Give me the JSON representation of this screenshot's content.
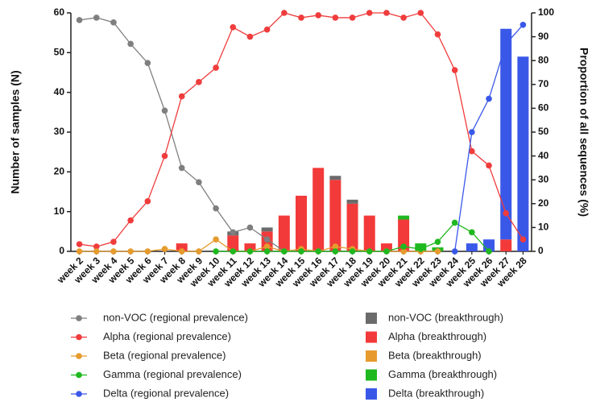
{
  "chart_data": {
    "type": "bar-line",
    "y_label": "Number of samples (N)",
    "y2_label": "Proportion of all sequences (%)",
    "categories": [
      "week 2",
      "week 3",
      "week 4",
      "week 5",
      "week 6",
      "week 7",
      "week 8",
      "week 9",
      "week 10",
      "week 11",
      "week 12",
      "week 13",
      "week 14",
      "week 15",
      "week 16",
      "week 17",
      "week 18",
      "week 19",
      "week 20",
      "week 21",
      "week 22",
      "week 23",
      "week 24",
      "week 25",
      "week 26",
      "week 27",
      "week 28"
    ],
    "ylim": [
      0,
      60
    ],
    "yticks": [
      0,
      10,
      20,
      30,
      40,
      50,
      60
    ],
    "y2lim": [
      0,
      100
    ],
    "y2ticks": [
      0,
      10,
      20,
      30,
      40,
      50,
      60,
      70,
      80,
      90,
      100
    ],
    "series": [
      {
        "name": "non-VOC (regional prevalence)",
        "type": "line",
        "axis": "y2",
        "color": "#7f7f7f",
        "values": [
          97,
          98,
          96,
          87,
          79,
          59,
          35,
          29,
          18,
          8,
          10,
          5,
          0,
          null,
          null,
          null,
          null,
          null,
          null,
          null,
          null,
          null,
          null,
          null,
          null,
          null,
          null
        ]
      },
      {
        "name": "Alpha (regional prevalence)",
        "type": "line",
        "axis": "y2",
        "color": "#f03c3c",
        "values": [
          3,
          2,
          4,
          13,
          21,
          40,
          65,
          71,
          77,
          94,
          90,
          93,
          100,
          98,
          99,
          98,
          98,
          100,
          100,
          98,
          100,
          91,
          76,
          42,
          36,
          16,
          5
        ]
      },
      {
        "name": "Beta (regional prevalence)",
        "type": "line",
        "axis": "y2",
        "color": "#e69b2e",
        "values": [
          0,
          0,
          0,
          0,
          0,
          1,
          0,
          0,
          5,
          0,
          0,
          2,
          0,
          1,
          0,
          2,
          1,
          0,
          0,
          0,
          0,
          0,
          null,
          null,
          null,
          null,
          null
        ]
      },
      {
        "name": "Gamma (regional prevalence)",
        "type": "line",
        "axis": "y2",
        "color": "#1fb81f",
        "values": [
          null,
          null,
          null,
          null,
          null,
          null,
          null,
          null,
          0,
          0,
          0,
          0,
          0,
          0,
          0,
          0,
          0,
          0,
          0,
          2,
          1,
          4,
          12,
          8,
          0,
          null,
          null
        ]
      },
      {
        "name": "Delta (regional prevalence)",
        "type": "line",
        "axis": "y2",
        "color": "#3a58e8",
        "values": [
          null,
          null,
          null,
          null,
          null,
          null,
          null,
          null,
          null,
          null,
          null,
          null,
          null,
          null,
          null,
          null,
          null,
          null,
          null,
          null,
          null,
          null,
          0,
          50,
          64,
          87,
          95
        ]
      },
      {
        "name": "non-VOC (breakthrough)",
        "type": "bar",
        "color": "#6b6b6b",
        "values": [
          0,
          0,
          0,
          0,
          0,
          0,
          0,
          0,
          0,
          1,
          0,
          1,
          0,
          0,
          0,
          1,
          1,
          0,
          0,
          0,
          0,
          0,
          0,
          0,
          0,
          0,
          0
        ]
      },
      {
        "name": "Alpha (breakthrough)",
        "type": "bar",
        "color": "#f23a3a",
        "values": [
          0,
          0,
          0,
          0,
          0,
          0,
          2,
          0,
          0,
          4,
          2,
          5,
          9,
          14,
          21,
          18,
          12,
          9,
          2,
          8,
          0,
          0,
          0,
          0,
          0,
          3,
          0
        ]
      },
      {
        "name": "Beta (breakthrough)",
        "type": "bar",
        "color": "#e69b2e",
        "values": [
          0,
          0,
          0,
          0,
          0,
          0,
          0,
          0,
          0,
          0,
          0,
          0,
          0,
          0,
          0,
          0,
          0,
          0,
          0,
          0,
          0,
          0,
          0,
          0,
          0,
          0,
          0
        ]
      },
      {
        "name": "Gamma (breakthrough)",
        "type": "bar",
        "color": "#1fb81f",
        "values": [
          0,
          0,
          0,
          0,
          0,
          0,
          0,
          0,
          0,
          0,
          0,
          0,
          0,
          0,
          0,
          0,
          0,
          0,
          0,
          1,
          2,
          1,
          0,
          0,
          0,
          0,
          0
        ]
      },
      {
        "name": "Delta (breakthrough)",
        "type": "bar",
        "color": "#3a58e8",
        "values": [
          0,
          0,
          0,
          0,
          0,
          0,
          0,
          0,
          0,
          0,
          0,
          0,
          0,
          0,
          0,
          0,
          0,
          0,
          0,
          0,
          0,
          0,
          0,
          2,
          3,
          53,
          49
        ]
      }
    ]
  }
}
